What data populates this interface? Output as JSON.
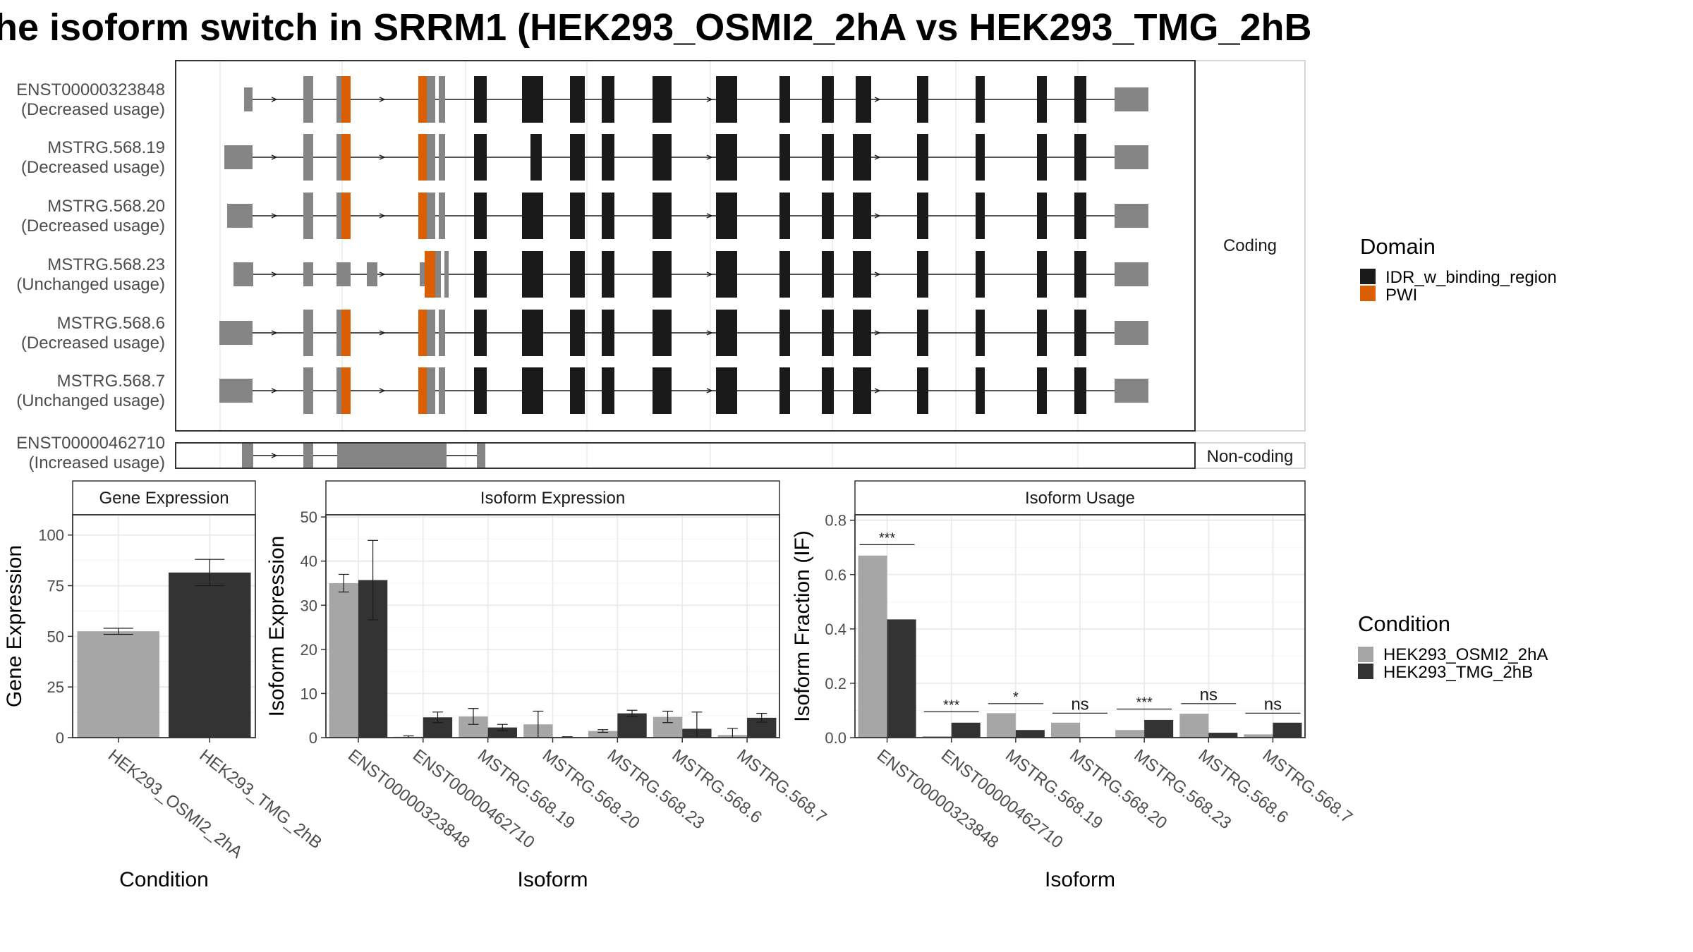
{
  "title": "he isoform switch in SRRM1 (HEK293_OSMI2_2hA vs HEK293_TMG_2hB",
  "structure": {
    "coding_label": "Coding",
    "noncoding_label": "Non-coding",
    "coding_rows": [
      {
        "id": "ENST00000323848",
        "usage": "(Decreased usage)"
      },
      {
        "id": "MSTRG.568.19",
        "usage": "(Decreased usage)"
      },
      {
        "id": "MSTRG.568.20",
        "usage": "(Decreased usage)"
      },
      {
        "id": "MSTRG.568.23",
        "usage": "(Unchanged usage)"
      },
      {
        "id": "MSTRG.568.6",
        "usage": "(Decreased usage)"
      },
      {
        "id": "MSTRG.568.7",
        "usage": "(Unchanged usage)"
      }
    ],
    "noncoding_rows": [
      {
        "id": "ENST00000462710",
        "usage": "(Increased usage)"
      }
    ]
  },
  "legend_domain": {
    "title": "Domain",
    "items": [
      {
        "label": "IDR_w_binding_region",
        "color": "#1a1a1a"
      },
      {
        "label": "PWI",
        "color": "#d95f02"
      }
    ]
  },
  "legend_condition": {
    "title": "Condition",
    "items": [
      {
        "label": "HEK293_OSMI2_2hA",
        "color": "#a6a6a6"
      },
      {
        "label": "HEK293_TMG_2hB",
        "color": "#333333"
      }
    ]
  },
  "chart_data": [
    {
      "type": "bar",
      "title": "Gene Expression",
      "xlabel": "Condition",
      "ylabel": "Gene Expression",
      "ylim": [
        0,
        110
      ],
      "yticks": [
        0,
        25,
        50,
        75,
        100
      ],
      "categories": [
        "HEK293_OSMI2_2hA",
        "HEK293_TMG_2hB"
      ],
      "values": [
        52.5,
        81.5
      ],
      "errors": [
        1.5,
        6.5
      ],
      "colors": [
        "#a6a6a6",
        "#333333"
      ]
    },
    {
      "type": "bar",
      "title": "Isoform Expression",
      "xlabel": "Isoform",
      "ylabel": "Isoform Expression",
      "ylim": [
        0,
        50.5
      ],
      "yticks": [
        0,
        10,
        20,
        30,
        40,
        50
      ],
      "categories": [
        "ENST00000323848",
        "ENST00000462710",
        "MSTRG.568.19",
        "MSTRG.568.20",
        "MSTRG.568.23",
        "MSTRG.568.6",
        "MSTRG.568.7"
      ],
      "series": [
        {
          "name": "HEK293_OSMI2_2hA",
          "values": [
            35,
            0.2,
            4.8,
            3.0,
            1.5,
            4.7,
            0.6
          ],
          "errors": [
            2.0,
            0.2,
            1.8,
            3.0,
            0.3,
            1.3,
            1.5
          ]
        },
        {
          "name": "HEK293_TMG_2hB",
          "values": [
            35.7,
            4.6,
            2.3,
            0.1,
            5.5,
            2.0,
            4.5
          ],
          "errors": [
            9.0,
            1.2,
            0.7,
            0.1,
            0.7,
            3.8,
            1.0
          ]
        }
      ]
    },
    {
      "type": "bar",
      "title": "Isoform Usage",
      "xlabel": "Isoform",
      "ylabel": "Isoform Fraction (IF)",
      "ylim": [
        0,
        0.82
      ],
      "yticks": [
        0.0,
        0.2,
        0.4,
        0.6,
        0.8
      ],
      "ytick_labels": [
        "0.0",
        "0.2",
        "0.4",
        "0.6",
        "0.8"
      ],
      "categories": [
        "ENST00000323848",
        "ENST00000462710",
        "MSTRG.568.19",
        "MSTRG.568.20",
        "MSTRG.568.23",
        "MSTRG.568.6",
        "MSTRG.568.7"
      ],
      "series": [
        {
          "name": "HEK293_OSMI2_2hA",
          "values": [
            0.67,
            0.005,
            0.09,
            0.055,
            0.028,
            0.088,
            0.012
          ]
        },
        {
          "name": "HEK293_TMG_2hB",
          "values": [
            0.435,
            0.055,
            0.028,
            0.0,
            0.065,
            0.018,
            0.055
          ]
        }
      ],
      "significance": [
        "***",
        "***",
        "*",
        "ns",
        "***",
        "ns",
        "ns"
      ],
      "significance_levels": [
        0.71,
        0.095,
        0.125,
        0.09,
        0.105,
        0.125,
        0.09
      ]
    }
  ]
}
